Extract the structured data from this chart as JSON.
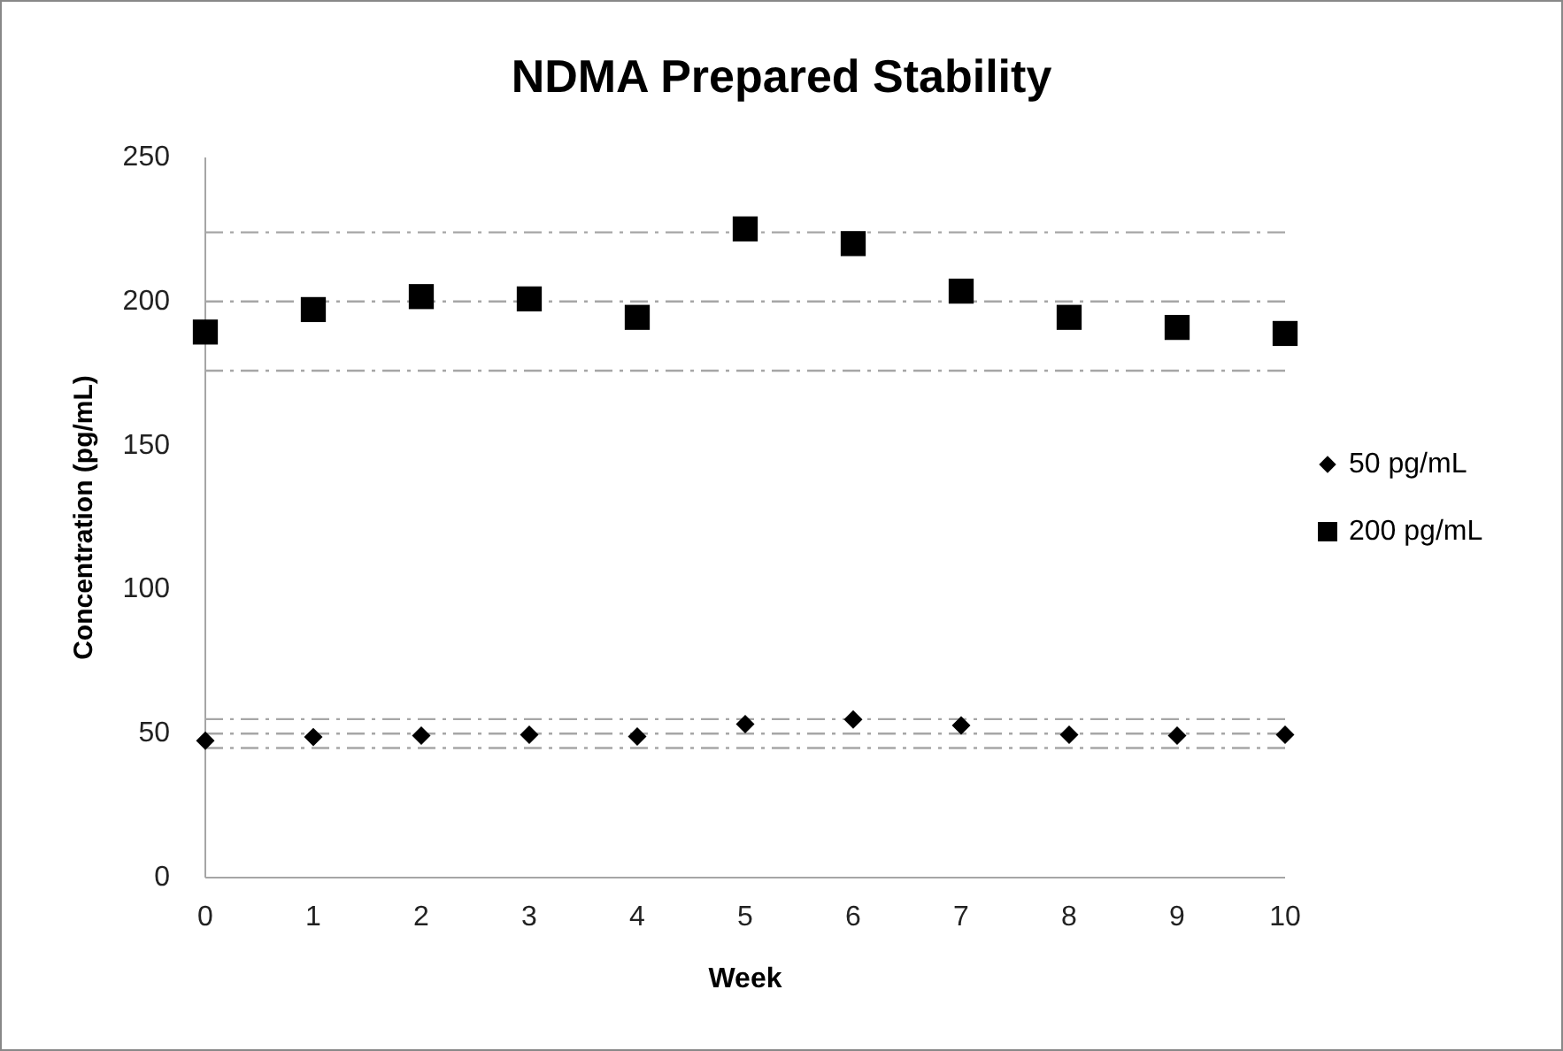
{
  "chart_data": {
    "type": "scatter",
    "title": "NDMA Prepared Stability",
    "xlabel": "Week",
    "ylabel": "Concentration (pg/mL)",
    "x": [
      0,
      1,
      2,
      3,
      4,
      5,
      6,
      7,
      8,
      9,
      10
    ],
    "xlim": [
      0,
      10
    ],
    "xticks": [
      0,
      1,
      2,
      3,
      4,
      5,
      6,
      7,
      8,
      9,
      10
    ],
    "ylim": [
      0,
      250
    ],
    "yticks": [
      0,
      50,
      100,
      150,
      200,
      250
    ],
    "grid": false,
    "legend": "right",
    "series": [
      {
        "name": "50 pg/mL",
        "color": "#000000",
        "marker": "diamond",
        "values": [
          47.5,
          48.8,
          49.3,
          49.6,
          49.0,
          53.3,
          54.9,
          52.8,
          49.6,
          49.3,
          49.6
        ]
      },
      {
        "name": "200 pg/mL",
        "color": "#000000",
        "marker": "square",
        "values": [
          189.4,
          197.2,
          201.7,
          200.9,
          194.5,
          225.2,
          220.1,
          203.6,
          194.5,
          191.0,
          188.9
        ]
      }
    ],
    "ref_lines": [
      {
        "axis": "y",
        "value": 224,
        "color": "#a6a6a6",
        "line_style": "dashdot"
      },
      {
        "axis": "y",
        "value": 200,
        "color": "#a6a6a6",
        "line_style": "dashdot"
      },
      {
        "axis": "y",
        "value": 176,
        "color": "#a6a6a6",
        "line_style": "dashdot"
      },
      {
        "axis": "y",
        "value": 55,
        "color": "#a6a6a6",
        "line_style": "dashdot"
      },
      {
        "axis": "y",
        "value": 50,
        "color": "#a6a6a6",
        "line_style": "dashdot"
      },
      {
        "axis": "y",
        "value": 45,
        "color": "#a6a6a6",
        "line_style": "dashdot"
      }
    ]
  }
}
